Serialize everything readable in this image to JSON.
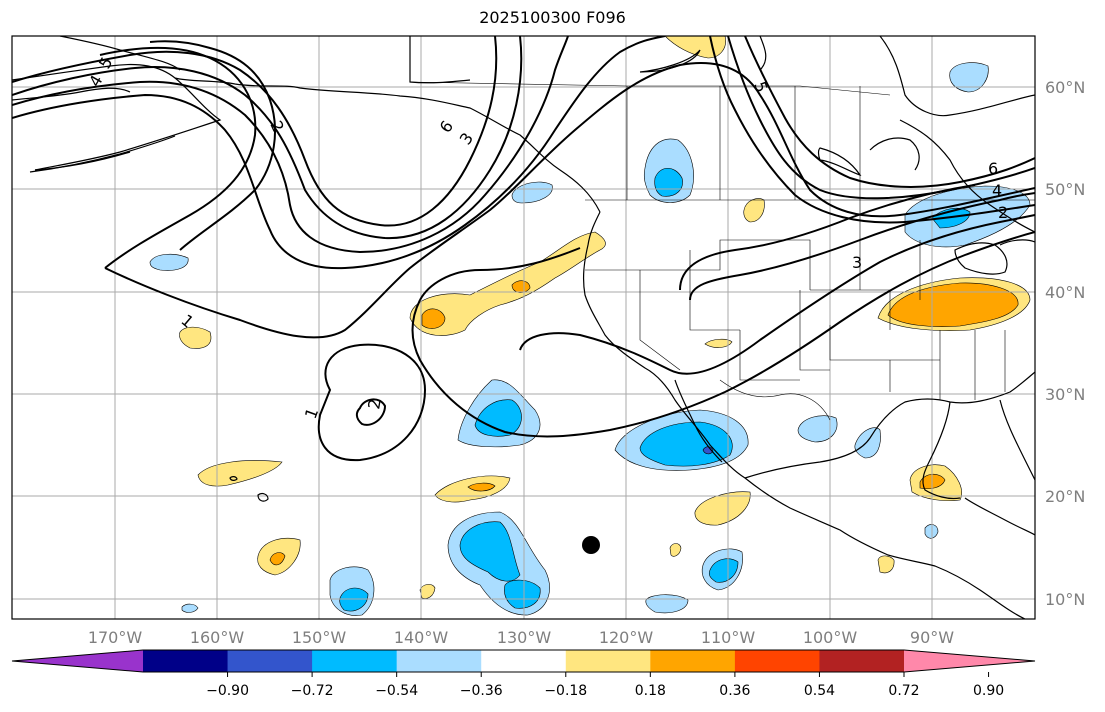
{
  "title": "2025100300 F096",
  "lat_ticks": [
    "60°N",
    "50°N",
    "40°N",
    "30°N",
    "20°N",
    "10°N"
  ],
  "lon_ticks": [
    "170°W",
    "160°W",
    "150°W",
    "140°W",
    "130°W",
    "120°W",
    "110°W",
    "100°W",
    "90°W"
  ],
  "colorbar": {
    "colors": [
      "#9933cc",
      "#000088",
      "#3355cc",
      "#00bbff",
      "#aaddff",
      "#ffffff",
      "#ffe680",
      "#ffa500",
      "#ff4400",
      "#b22222",
      "#ff88aa"
    ],
    "ticks": [
      "−0.90",
      "−0.72",
      "−0.54",
      "−0.36",
      "−0.18",
      "0.18",
      "0.36",
      "0.54",
      "0.72",
      "0.90"
    ]
  },
  "contour_labels": [
    "5",
    "4",
    "6",
    "3",
    "1",
    "2",
    "1",
    "6",
    "4",
    "2",
    "3",
    "5",
    "2"
  ],
  "colors": {
    "grid": "#aaaaaa",
    "coast": "#000000",
    "contour": "#000000",
    "light_blue": "#aaddff",
    "blue": "#00bbff",
    "dark_blue": "#3355cc",
    "yellow": "#ffe680",
    "orange": "#ffa500"
  }
}
